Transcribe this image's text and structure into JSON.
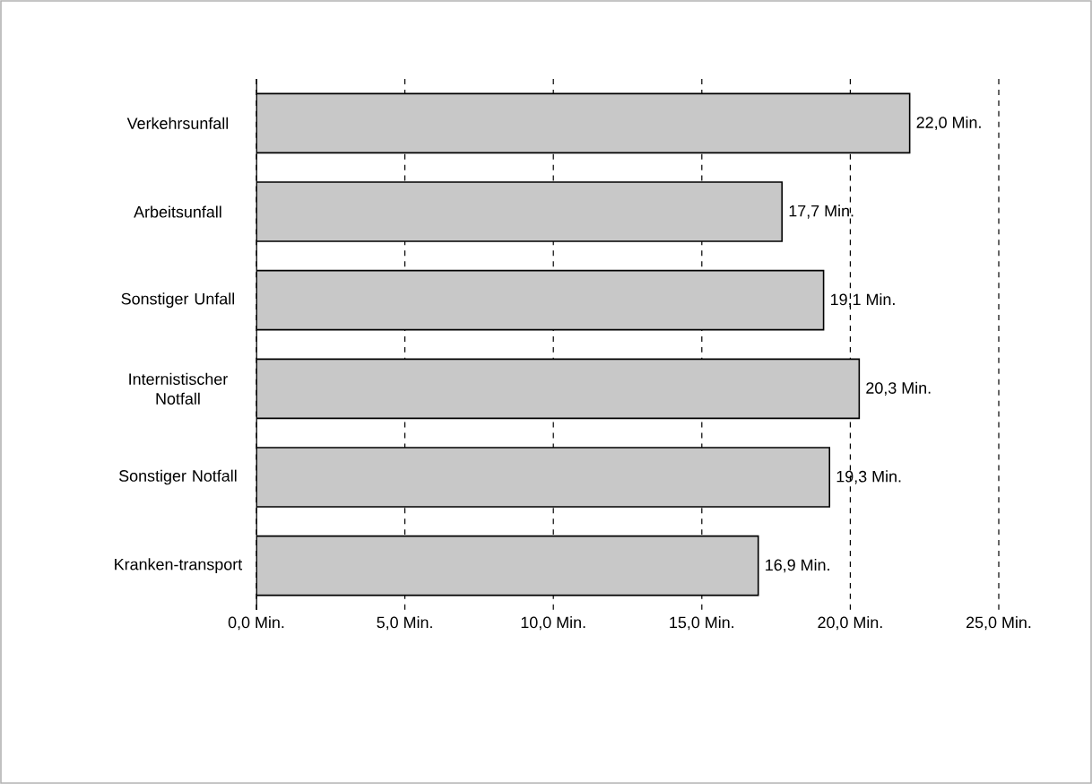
{
  "chart_data": {
    "type": "bar",
    "orientation": "horizontal",
    "categories": [
      "Verkehrsunfall",
      "Arbeitsunfall",
      "Sonstiger Unfall",
      "Internistischer Notfall",
      "Sonstiger Notfall",
      "Kranken-transport"
    ],
    "values": [
      22.0,
      17.7,
      19.1,
      20.3,
      19.3,
      16.9
    ],
    "value_labels": [
      "22,0 Min.",
      "17,7 Min.",
      "19,1 Min.",
      "20,3 Min.",
      "19,3 Min.",
      "16,9 Min."
    ],
    "color": "#c8c8c8",
    "xlim": [
      0,
      25
    ],
    "xticks": [
      {
        "value": 0,
        "label": "0,0 Min."
      },
      {
        "value": 5,
        "label": "5,0 Min."
      },
      {
        "value": 10,
        "label": "10,0 Min."
      },
      {
        "value": 15,
        "label": "15,0 Min."
      },
      {
        "value": 20,
        "label": "20,0 Min."
      },
      {
        "value": 25,
        "label": "25,0 Min."
      }
    ],
    "grid": "x"
  }
}
